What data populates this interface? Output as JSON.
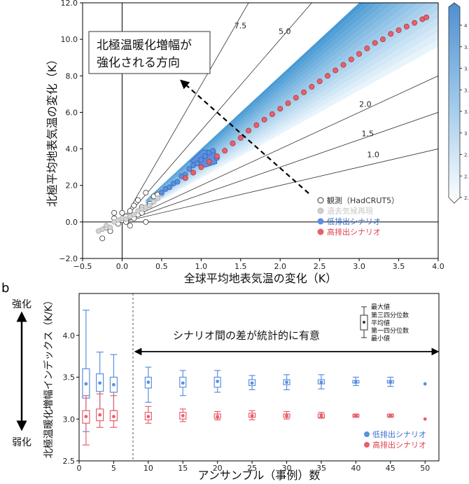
{
  "chart_data": [
    {
      "type": "scatter",
      "xlabel": "全球平均地表気温の変化（K）",
      "ylabel": "北極平均地表気温の変化（K）",
      "xlim": [
        -0.5,
        4.0
      ],
      "ylim": [
        -2.0,
        12.0
      ],
      "xticks": [
        "−0.5",
        "0.0",
        "0.5",
        "1.0",
        "1.5",
        "2.0",
        "2.5",
        "3.0",
        "3.5",
        "4.0"
      ],
      "yticks": [
        "−2.0",
        "0.0",
        "2.0",
        "4.0",
        "6.0",
        "8.0",
        "10.0",
        "12.0"
      ],
      "ref_lines": [
        {
          "slope": 7.5,
          "label": "7.5"
        },
        {
          "slope": 5.0,
          "label": "5.0"
        },
        {
          "slope": 2.0,
          "label": "2.0"
        },
        {
          "slope": 1.5,
          "label": "1.5"
        },
        {
          "slope": 1.0,
          "label": "1.0"
        }
      ],
      "annotation": {
        "line1": "北極温暖化増幅が",
        "line2": "強化される方向"
      },
      "colorbar": {
        "ticks": [
          "4",
          "3.8",
          "3.6",
          "3.4",
          "3.2",
          "3",
          "2.8",
          "2.6",
          "2.4"
        ],
        "range": [
          2.4,
          4.0
        ]
      },
      "legend": {
        "position": "lower-right",
        "entries": [
          {
            "label": "観測（HadCRUT5）",
            "color": "#ffffff"
          },
          {
            "label": "過去気候再現",
            "color": "#cfcfcf"
          },
          {
            "label": "低排出シナリオ",
            "color": "#5b8fe0"
          },
          {
            "label": "高排出シナリオ",
            "color": "#e8606c"
          }
        ]
      },
      "series": [
        {
          "name": "観測（HadCRUT5）",
          "x": [
            -0.25,
            -0.2,
            -0.15,
            -0.1,
            -0.05,
            0.0,
            0.0,
            0.05,
            0.1,
            0.1,
            0.15,
            0.2,
            0.2,
            0.25,
            0.3,
            0.35,
            0.4,
            0.45,
            -0.1,
            0.05,
            0.15,
            0.25,
            0.3
          ],
          "y": [
            -0.9,
            -0.3,
            -0.5,
            0.2,
            -0.1,
            0.1,
            0.5,
            0.3,
            0.6,
            -0.2,
            0.9,
            0.4,
            1.2,
            0.8,
            1.6,
            1.0,
            1.4,
            1.5,
            0.5,
            0.0,
            0.2,
            0.5,
            0.0
          ]
        },
        {
          "name": "過去気候再現",
          "x": [
            -0.3,
            -0.25,
            -0.2,
            -0.15,
            -0.1,
            -0.05,
            0.0,
            0.05,
            0.1,
            0.15,
            0.2,
            0.25,
            0.3,
            0.35,
            0.4,
            0.45,
            0.5
          ],
          "y": [
            -0.5,
            -0.4,
            -0.2,
            -0.3,
            0.0,
            0.1,
            0.2,
            0.15,
            0.3,
            0.4,
            0.6,
            0.7,
            0.8,
            0.9,
            1.1,
            1.3,
            1.5
          ]
        },
        {
          "name": "低排出シナリオ",
          "x": [
            0.5,
            0.55,
            0.6,
            0.65,
            0.7,
            0.75,
            0.8,
            0.85,
            0.9,
            0.95,
            1.0,
            1.05,
            1.1,
            1.15,
            1.2
          ],
          "y": [
            1.6,
            1.8,
            1.9,
            2.1,
            2.2,
            2.5,
            2.6,
            2.9,
            3.1,
            3.2,
            3.4,
            3.6,
            3.8,
            3.9,
            3.5
          ]
        },
        {
          "name": "高排出シナリオ",
          "x": [
            0.8,
            0.9,
            1.0,
            1.1,
            1.2,
            1.3,
            1.4,
            1.5,
            1.6,
            1.7,
            1.8,
            1.9,
            2.0,
            2.1,
            2.2,
            2.3,
            2.4,
            2.5,
            2.6,
            2.7,
            2.8,
            2.9,
            3.0,
            3.1,
            3.2,
            3.3,
            3.4,
            3.5,
            3.6,
            3.7,
            3.8,
            3.85
          ],
          "y": [
            2.4,
            2.7,
            3.0,
            3.3,
            3.6,
            3.9,
            4.3,
            4.6,
            5.0,
            5.3,
            5.6,
            5.9,
            6.2,
            6.5,
            6.8,
            7.1,
            7.4,
            7.7,
            8.0,
            8.3,
            8.6,
            8.9,
            9.2,
            9.5,
            9.8,
            10.0,
            10.3,
            10.5,
            10.7,
            10.9,
            11.1,
            11.2
          ]
        }
      ]
    },
    {
      "type": "box",
      "panel_label": "b",
      "xlabel": "アンサンブル（事例）数",
      "ylabel": "北極温暖化増幅インデックス（K/K）",
      "xlim": [
        0,
        52
      ],
      "ylim": [
        2.5,
        4.5
      ],
      "xticks": [
        "0",
        "5",
        "10",
        "15",
        "20",
        "25",
        "30",
        "35",
        "40",
        "45",
        "50"
      ],
      "yticks": [
        "2.5",
        "3.0",
        "3.5",
        "4.0"
      ],
      "left_labels": {
        "top": "強化",
        "bottom": "弱化"
      },
      "arrow_text": "シナリオ間の差が統計的に有意",
      "key": {
        "max": "最大値",
        "q3": "第三四分位数",
        "mean": "平均値",
        "q1": "第一四分位数",
        "min": "最小値"
      },
      "legend": {
        "position": "lower-right",
        "entries": [
          {
            "label": "低排出シナリオ",
            "color": "#5b8fe0"
          },
          {
            "label": "高排出シナリオ",
            "color": "#e8606c"
          }
        ]
      },
      "series": [
        {
          "name": "低排出シナリオ",
          "x": [
            1,
            3,
            5,
            10,
            15,
            20,
            25,
            30,
            35,
            40,
            45,
            50
          ],
          "min": [
            2.85,
            3.05,
            3.1,
            3.2,
            3.28,
            3.32,
            3.35,
            3.35,
            3.36,
            3.4,
            3.39,
            3.42
          ],
          "q1": [
            3.25,
            3.33,
            3.32,
            3.37,
            3.38,
            3.38,
            3.4,
            3.41,
            3.42,
            3.43,
            3.43,
            3.42
          ],
          "mean": [
            3.42,
            3.43,
            3.41,
            3.44,
            3.43,
            3.45,
            3.43,
            3.44,
            3.44,
            3.44,
            3.44,
            3.42
          ],
          "q3": [
            3.6,
            3.54,
            3.5,
            3.5,
            3.5,
            3.5,
            3.47,
            3.47,
            3.47,
            3.46,
            3.46,
            3.42
          ],
          "max": [
            4.3,
            3.8,
            3.77,
            3.62,
            3.58,
            3.58,
            3.52,
            3.53,
            3.53,
            3.5,
            3.5,
            3.42
          ]
        },
        {
          "name": "高排出シナリオ",
          "x": [
            1,
            3,
            5,
            10,
            15,
            20,
            25,
            30,
            35,
            40,
            45,
            50
          ],
          "min": [
            2.69,
            2.9,
            2.9,
            2.95,
            2.97,
            2.99,
            2.99,
            3.0,
            3.01,
            3.02,
            3.02,
            3.0
          ],
          "q1": [
            2.95,
            2.98,
            2.98,
            2.99,
            3.0,
            3.01,
            3.02,
            3.02,
            3.02,
            3.03,
            3.03,
            3.0
          ],
          "mean": [
            3.03,
            3.05,
            3.03,
            3.03,
            3.04,
            3.03,
            3.04,
            3.04,
            3.04,
            3.04,
            3.04,
            3.0
          ],
          "q3": [
            3.1,
            3.12,
            3.1,
            3.08,
            3.08,
            3.06,
            3.07,
            3.06,
            3.06,
            3.05,
            3.05,
            3.0
          ],
          "max": [
            3.28,
            3.3,
            3.28,
            3.15,
            3.12,
            3.09,
            3.1,
            3.09,
            3.08,
            3.06,
            3.06,
            3.0
          ]
        }
      ]
    }
  ]
}
